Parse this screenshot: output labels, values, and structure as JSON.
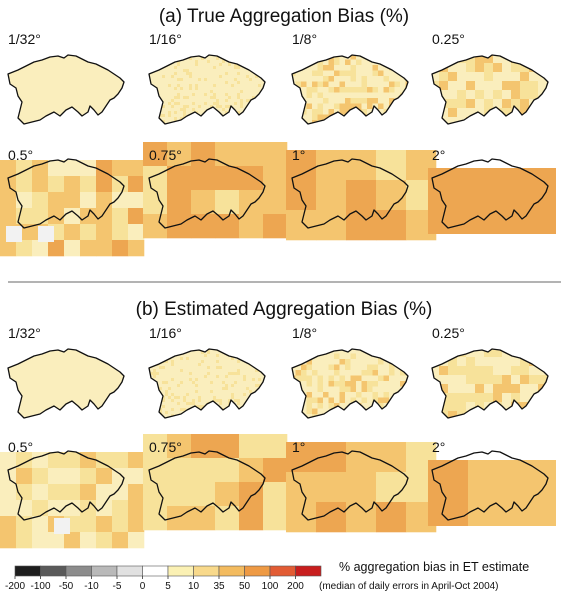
{
  "chart_data": {
    "type": "heatmap",
    "sections": [
      {
        "title": "(a) True Aggregation Bias (%)",
        "panels": [
          {
            "label": "1/32°",
            "pixels": [
              [
                "cream",
                0.9
              ]
            ]
          },
          {
            "label": "1/16°",
            "pixels": [
              [
                "cream",
                0.85
              ],
              [
                "pale",
                0.15
              ]
            ]
          },
          {
            "label": "1/8°",
            "pixels": [
              [
                "cream",
                0.6
              ],
              [
                "pale",
                0.25
              ],
              [
                "light",
                0.15
              ]
            ]
          },
          {
            "label": "0.25°",
            "pixels": [
              [
                "cream",
                0.45
              ],
              [
                "pale",
                0.3
              ],
              [
                "light",
                0.25
              ]
            ]
          },
          {
            "label": "0.5°",
            "pixels": [
              [
                "cream",
                0.25
              ],
              [
                "pale",
                0.35
              ],
              [
                "light",
                0.3
              ],
              [
                "mid",
                0.1
              ]
            ]
          },
          {
            "label": "0.75°",
            "pixels": [
              [
                "pale",
                0.35
              ],
              [
                "light",
                0.35
              ],
              [
                "mid",
                0.3
              ]
            ]
          },
          {
            "label": "1°",
            "pixels": [
              [
                "pale",
                0.3
              ],
              [
                "light",
                0.35
              ],
              [
                "mid",
                0.35
              ]
            ]
          },
          {
            "label": "2°",
            "pixels": [
              [
                "mid",
                1.0
              ]
            ]
          }
        ]
      },
      {
        "title": "(b) Estimated Aggregation Bias (%)",
        "panels": [
          {
            "label": "1/32°",
            "pixels": [
              [
                "cream",
                0.9
              ]
            ]
          },
          {
            "label": "1/16°",
            "pixels": [
              [
                "cream",
                0.85
              ],
              [
                "pale",
                0.15
              ]
            ]
          },
          {
            "label": "1/8°",
            "pixels": [
              [
                "cream",
                0.65
              ],
              [
                "pale",
                0.25
              ],
              [
                "light",
                0.1
              ]
            ]
          },
          {
            "label": "0.25°",
            "pixels": [
              [
                "cream",
                0.55
              ],
              [
                "pale",
                0.3
              ],
              [
                "light",
                0.15
              ]
            ]
          },
          {
            "label": "0.5°",
            "pixels": [
              [
                "cream",
                0.35
              ],
              [
                "pale",
                0.4
              ],
              [
                "light",
                0.25
              ]
            ]
          },
          {
            "label": "0.75°",
            "pixels": [
              [
                "pale",
                0.5
              ],
              [
                "light",
                0.4
              ],
              [
                "mid",
                0.1
              ]
            ]
          },
          {
            "label": "1°",
            "pixels": [
              [
                "pale",
                0.4
              ],
              [
                "light",
                0.45
              ],
              [
                "mid",
                0.15
              ]
            ]
          },
          {
            "label": "2°",
            "pixels": [
              [
                "light",
                0.55
              ],
              [
                "mid",
                0.45
              ]
            ]
          }
        ]
      }
    ],
    "colorbar": {
      "ticks": [
        "-200",
        "-100",
        "-50",
        "-10",
        "-5",
        "0",
        "5",
        "10",
        "35",
        "50",
        "100",
        "200"
      ],
      "colors": [
        "#1e1e1e",
        "#5a5a5a",
        "#8c8c8c",
        "#b9b9b9",
        "#e1e1e1",
        "#ffffff",
        "#fbf1b4",
        "#f8d98b",
        "#f3bb5f",
        "#ee9a44",
        "#e25c34",
        "#c81e1e"
      ],
      "label": "% aggregation bias in ET estimate",
      "sublabel": "(median of daily errors in April-Oct 2004)"
    },
    "color_classes": {
      "cream": "#faeebd",
      "pale": "#f7e29a",
      "light": "#f4c56f",
      "mid": "#eda651"
    }
  }
}
